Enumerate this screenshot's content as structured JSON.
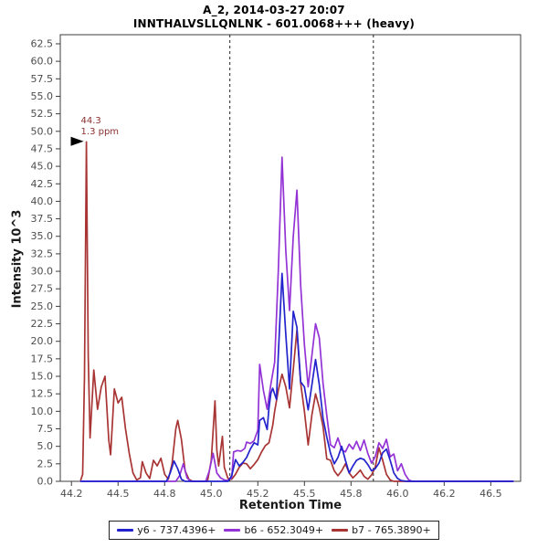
{
  "chart_data": {
    "type": "line",
    "title": "A_2, 2014-03-27 20:07",
    "subtitle": "INNTHALVSLLQNLNK - 601.0068+++ (heavy)",
    "xlabel": "Retention Time",
    "ylabel": "Intensity 10^3",
    "xlim": [
      44.19,
      46.66
    ],
    "ylim": [
      0,
      63.8
    ],
    "grid": false,
    "legend_position": "bottom",
    "x_ticks": [
      {
        "v": 44.25,
        "label": "44.2"
      },
      {
        "v": 44.5,
        "label": "44.5"
      },
      {
        "v": 44.75,
        "label": "44.8"
      },
      {
        "v": 45.0,
        "label": "45.0"
      },
      {
        "v": 45.25,
        "label": "45.2"
      },
      {
        "v": 45.5,
        "label": "45.5"
      },
      {
        "v": 45.75,
        "label": "45.8"
      },
      {
        "v": 46.0,
        "label": "46.0"
      },
      {
        "v": 46.25,
        "label": "46.2"
      },
      {
        "v": 46.5,
        "label": "46.5"
      }
    ],
    "y_ticks": {
      "step": 2.5,
      "labels": [
        "0.0",
        "2.5",
        "5.0",
        "7.5",
        "10.0",
        "12.5",
        "15.0",
        "17.5",
        "20.0",
        "22.5",
        "25.0",
        "27.5",
        "30.0",
        "32.5",
        "35.0",
        "37.5",
        "40.0",
        "42.5",
        "45.0",
        "47.5",
        "50.0",
        "52.5",
        "55.0",
        "57.5",
        "60.0",
        "62.5"
      ]
    },
    "peak_boundaries": {
      "style": "dashed",
      "color": "#222222",
      "x": [
        45.1,
        45.87
      ]
    },
    "annotation": {
      "rt_label": "44.3",
      "ppm_label": "1.3 ppm",
      "x": 44.325,
      "y": 48.5,
      "color": "#8b3030"
    },
    "series": [
      {
        "name": "y6",
        "legend": "y6 - 737.4396+",
        "color": "#2323cd",
        "points": [
          [
            44.3,
            0
          ],
          [
            44.76,
            0
          ],
          [
            44.78,
            1.2
          ],
          [
            44.8,
            2.9
          ],
          [
            44.82,
            1.8
          ],
          [
            44.84,
            0.3
          ],
          [
            44.86,
            0
          ],
          [
            45.09,
            0
          ],
          [
            45.11,
            0.8
          ],
          [
            45.13,
            3.1
          ],
          [
            45.15,
            2.2
          ],
          [
            45.17,
            2.7
          ],
          [
            45.19,
            3.4
          ],
          [
            45.21,
            4.6
          ],
          [
            45.23,
            5.5
          ],
          [
            45.25,
            5.2
          ],
          [
            45.26,
            8.7
          ],
          [
            45.28,
            9.1
          ],
          [
            45.3,
            7.4
          ],
          [
            45.31,
            10.5
          ],
          [
            45.32,
            12.6
          ],
          [
            45.33,
            13.3
          ],
          [
            45.35,
            11.7
          ],
          [
            45.36,
            18.0
          ],
          [
            45.38,
            29.7
          ],
          [
            45.4,
            21.0
          ],
          [
            45.42,
            13.2
          ],
          [
            45.44,
            24.3
          ],
          [
            45.46,
            22.0
          ],
          [
            45.48,
            14.2
          ],
          [
            45.5,
            13.5
          ],
          [
            45.52,
            10.2
          ],
          [
            45.54,
            13.8
          ],
          [
            45.56,
            17.4
          ],
          [
            45.58,
            13.8
          ],
          [
            45.6,
            9.0
          ],
          [
            45.62,
            6.3
          ],
          [
            45.64,
            4.0
          ],
          [
            45.66,
            2.5
          ],
          [
            45.68,
            3.4
          ],
          [
            45.7,
            5.0
          ],
          [
            45.72,
            3.0
          ],
          [
            45.74,
            1.2
          ],
          [
            45.76,
            2.2
          ],
          [
            45.78,
            3.0
          ],
          [
            45.8,
            3.3
          ],
          [
            45.82,
            3.1
          ],
          [
            45.84,
            2.4
          ],
          [
            45.86,
            1.5
          ],
          [
            45.88,
            1.8
          ],
          [
            45.9,
            2.6
          ],
          [
            45.92,
            4.1
          ],
          [
            45.94,
            4.6
          ],
          [
            45.96,
            3.0
          ],
          [
            45.98,
            1.2
          ],
          [
            46.0,
            0.4
          ],
          [
            46.02,
            0.1
          ],
          [
            46.05,
            0
          ],
          [
            46.62,
            0
          ]
        ]
      },
      {
        "name": "b6",
        "legend": "b6 - 652.3049+",
        "color": "#9333d6",
        "points": [
          [
            44.3,
            0
          ],
          [
            44.81,
            0
          ],
          [
            44.83,
            0.8
          ],
          [
            44.85,
            2.5
          ],
          [
            44.87,
            0.5
          ],
          [
            44.89,
            0
          ],
          [
            44.97,
            0
          ],
          [
            44.99,
            1.5
          ],
          [
            45.01,
            4.0
          ],
          [
            45.03,
            1.2
          ],
          [
            45.05,
            0.5
          ],
          [
            45.07,
            0.2
          ],
          [
            45.09,
            0.1
          ],
          [
            45.11,
            0.5
          ],
          [
            45.12,
            4.2
          ],
          [
            45.14,
            4.4
          ],
          [
            45.16,
            4.3
          ],
          [
            45.18,
            4.7
          ],
          [
            45.19,
            5.6
          ],
          [
            45.21,
            5.4
          ],
          [
            45.23,
            5.8
          ],
          [
            45.25,
            7.3
          ],
          [
            45.26,
            16.7
          ],
          [
            45.28,
            13.0
          ],
          [
            45.3,
            10.3
          ],
          [
            45.32,
            13.9
          ],
          [
            45.34,
            17.0
          ],
          [
            45.36,
            30.0
          ],
          [
            45.38,
            46.3
          ],
          [
            45.4,
            33.0
          ],
          [
            45.42,
            24.4
          ],
          [
            45.44,
            35.0
          ],
          [
            45.46,
            41.6
          ],
          [
            45.48,
            28.0
          ],
          [
            45.5,
            19.5
          ],
          [
            45.52,
            13.5
          ],
          [
            45.54,
            18.0
          ],
          [
            45.56,
            22.5
          ],
          [
            45.58,
            20.5
          ],
          [
            45.6,
            14.0
          ],
          [
            45.62,
            9.4
          ],
          [
            45.64,
            5.2
          ],
          [
            45.66,
            4.8
          ],
          [
            45.68,
            6.2
          ],
          [
            45.7,
            4.5
          ],
          [
            45.72,
            4.2
          ],
          [
            45.74,
            5.3
          ],
          [
            45.76,
            4.6
          ],
          [
            45.78,
            5.7
          ],
          [
            45.8,
            4.4
          ],
          [
            45.82,
            5.9
          ],
          [
            45.84,
            4.0
          ],
          [
            45.86,
            2.6
          ],
          [
            45.88,
            3.5
          ],
          [
            45.9,
            5.5
          ],
          [
            45.92,
            4.7
          ],
          [
            45.94,
            6.0
          ],
          [
            45.96,
            3.5
          ],
          [
            45.98,
            3.9
          ],
          [
            46.0,
            1.5
          ],
          [
            46.02,
            2.5
          ],
          [
            46.04,
            1.0
          ],
          [
            46.06,
            0.2
          ],
          [
            46.08,
            0
          ],
          [
            46.62,
            0
          ]
        ]
      },
      {
        "name": "b7",
        "legend": "b7 - 765.3890+",
        "color": "#a83434",
        "points": [
          [
            44.3,
            0.2
          ],
          [
            44.31,
            1.0
          ],
          [
            44.32,
            15.0
          ],
          [
            44.33,
            48.5
          ],
          [
            44.34,
            18.0
          ],
          [
            44.35,
            6.2
          ],
          [
            44.37,
            15.9
          ],
          [
            44.39,
            10.3
          ],
          [
            44.41,
            13.5
          ],
          [
            44.43,
            15.0
          ],
          [
            44.45,
            5.9
          ],
          [
            44.46,
            3.8
          ],
          [
            44.48,
            13.2
          ],
          [
            44.5,
            11.2
          ],
          [
            44.52,
            12.0
          ],
          [
            44.54,
            7.5
          ],
          [
            44.56,
            4.0
          ],
          [
            44.58,
            1.2
          ],
          [
            44.6,
            0.2
          ],
          [
            44.62,
            0.5
          ],
          [
            44.63,
            2.8
          ],
          [
            44.65,
            1.2
          ],
          [
            44.67,
            0.4
          ],
          [
            44.69,
            3.0
          ],
          [
            44.71,
            2.2
          ],
          [
            44.73,
            3.3
          ],
          [
            44.75,
            1.0
          ],
          [
            44.77,
            0.3
          ],
          [
            44.79,
            2.5
          ],
          [
            44.81,
            7.5
          ],
          [
            44.82,
            8.7
          ],
          [
            44.84,
            6.0
          ],
          [
            44.86,
            1.5
          ],
          [
            44.88,
            0.3
          ],
          [
            44.9,
            0
          ],
          [
            44.98,
            0
          ],
          [
            45.0,
            3.0
          ],
          [
            45.02,
            11.5
          ],
          [
            45.03,
            4.5
          ],
          [
            45.04,
            2.2
          ],
          [
            45.06,
            6.4
          ],
          [
            45.07,
            2.0
          ],
          [
            45.09,
            0.4
          ],
          [
            45.11,
            0.3
          ],
          [
            45.13,
            1.0
          ],
          [
            45.15,
            2.0
          ],
          [
            45.17,
            2.6
          ],
          [
            45.19,
            2.5
          ],
          [
            45.21,
            1.8
          ],
          [
            45.23,
            2.4
          ],
          [
            45.25,
            3.1
          ],
          [
            45.27,
            4.2
          ],
          [
            45.29,
            5.1
          ],
          [
            45.31,
            5.5
          ],
          [
            45.33,
            8.0
          ],
          [
            45.34,
            10.0
          ],
          [
            45.36,
            13.0
          ],
          [
            45.38,
            15.3
          ],
          [
            45.4,
            13.5
          ],
          [
            45.42,
            10.5
          ],
          [
            45.44,
            16.0
          ],
          [
            45.46,
            21.6
          ],
          [
            45.48,
            14.0
          ],
          [
            45.5,
            10.0
          ],
          [
            45.52,
            5.2
          ],
          [
            45.54,
            9.5
          ],
          [
            45.56,
            12.5
          ],
          [
            45.58,
            10.5
          ],
          [
            45.6,
            7.8
          ],
          [
            45.62,
            3.2
          ],
          [
            45.64,
            3.0
          ],
          [
            45.66,
            1.5
          ],
          [
            45.68,
            0.8
          ],
          [
            45.7,
            1.5
          ],
          [
            45.72,
            2.5
          ],
          [
            45.74,
            1.2
          ],
          [
            45.76,
            0.5
          ],
          [
            45.78,
            1.0
          ],
          [
            45.8,
            1.6
          ],
          [
            45.82,
            0.7
          ],
          [
            45.84,
            0.3
          ],
          [
            45.86,
            0.9
          ],
          [
            45.88,
            2.0
          ],
          [
            45.9,
            4.8
          ],
          [
            45.92,
            3.0
          ],
          [
            45.94,
            1.0
          ],
          [
            45.96,
            0.2
          ],
          [
            45.98,
            0
          ],
          [
            46.62,
            0
          ]
        ]
      }
    ]
  }
}
